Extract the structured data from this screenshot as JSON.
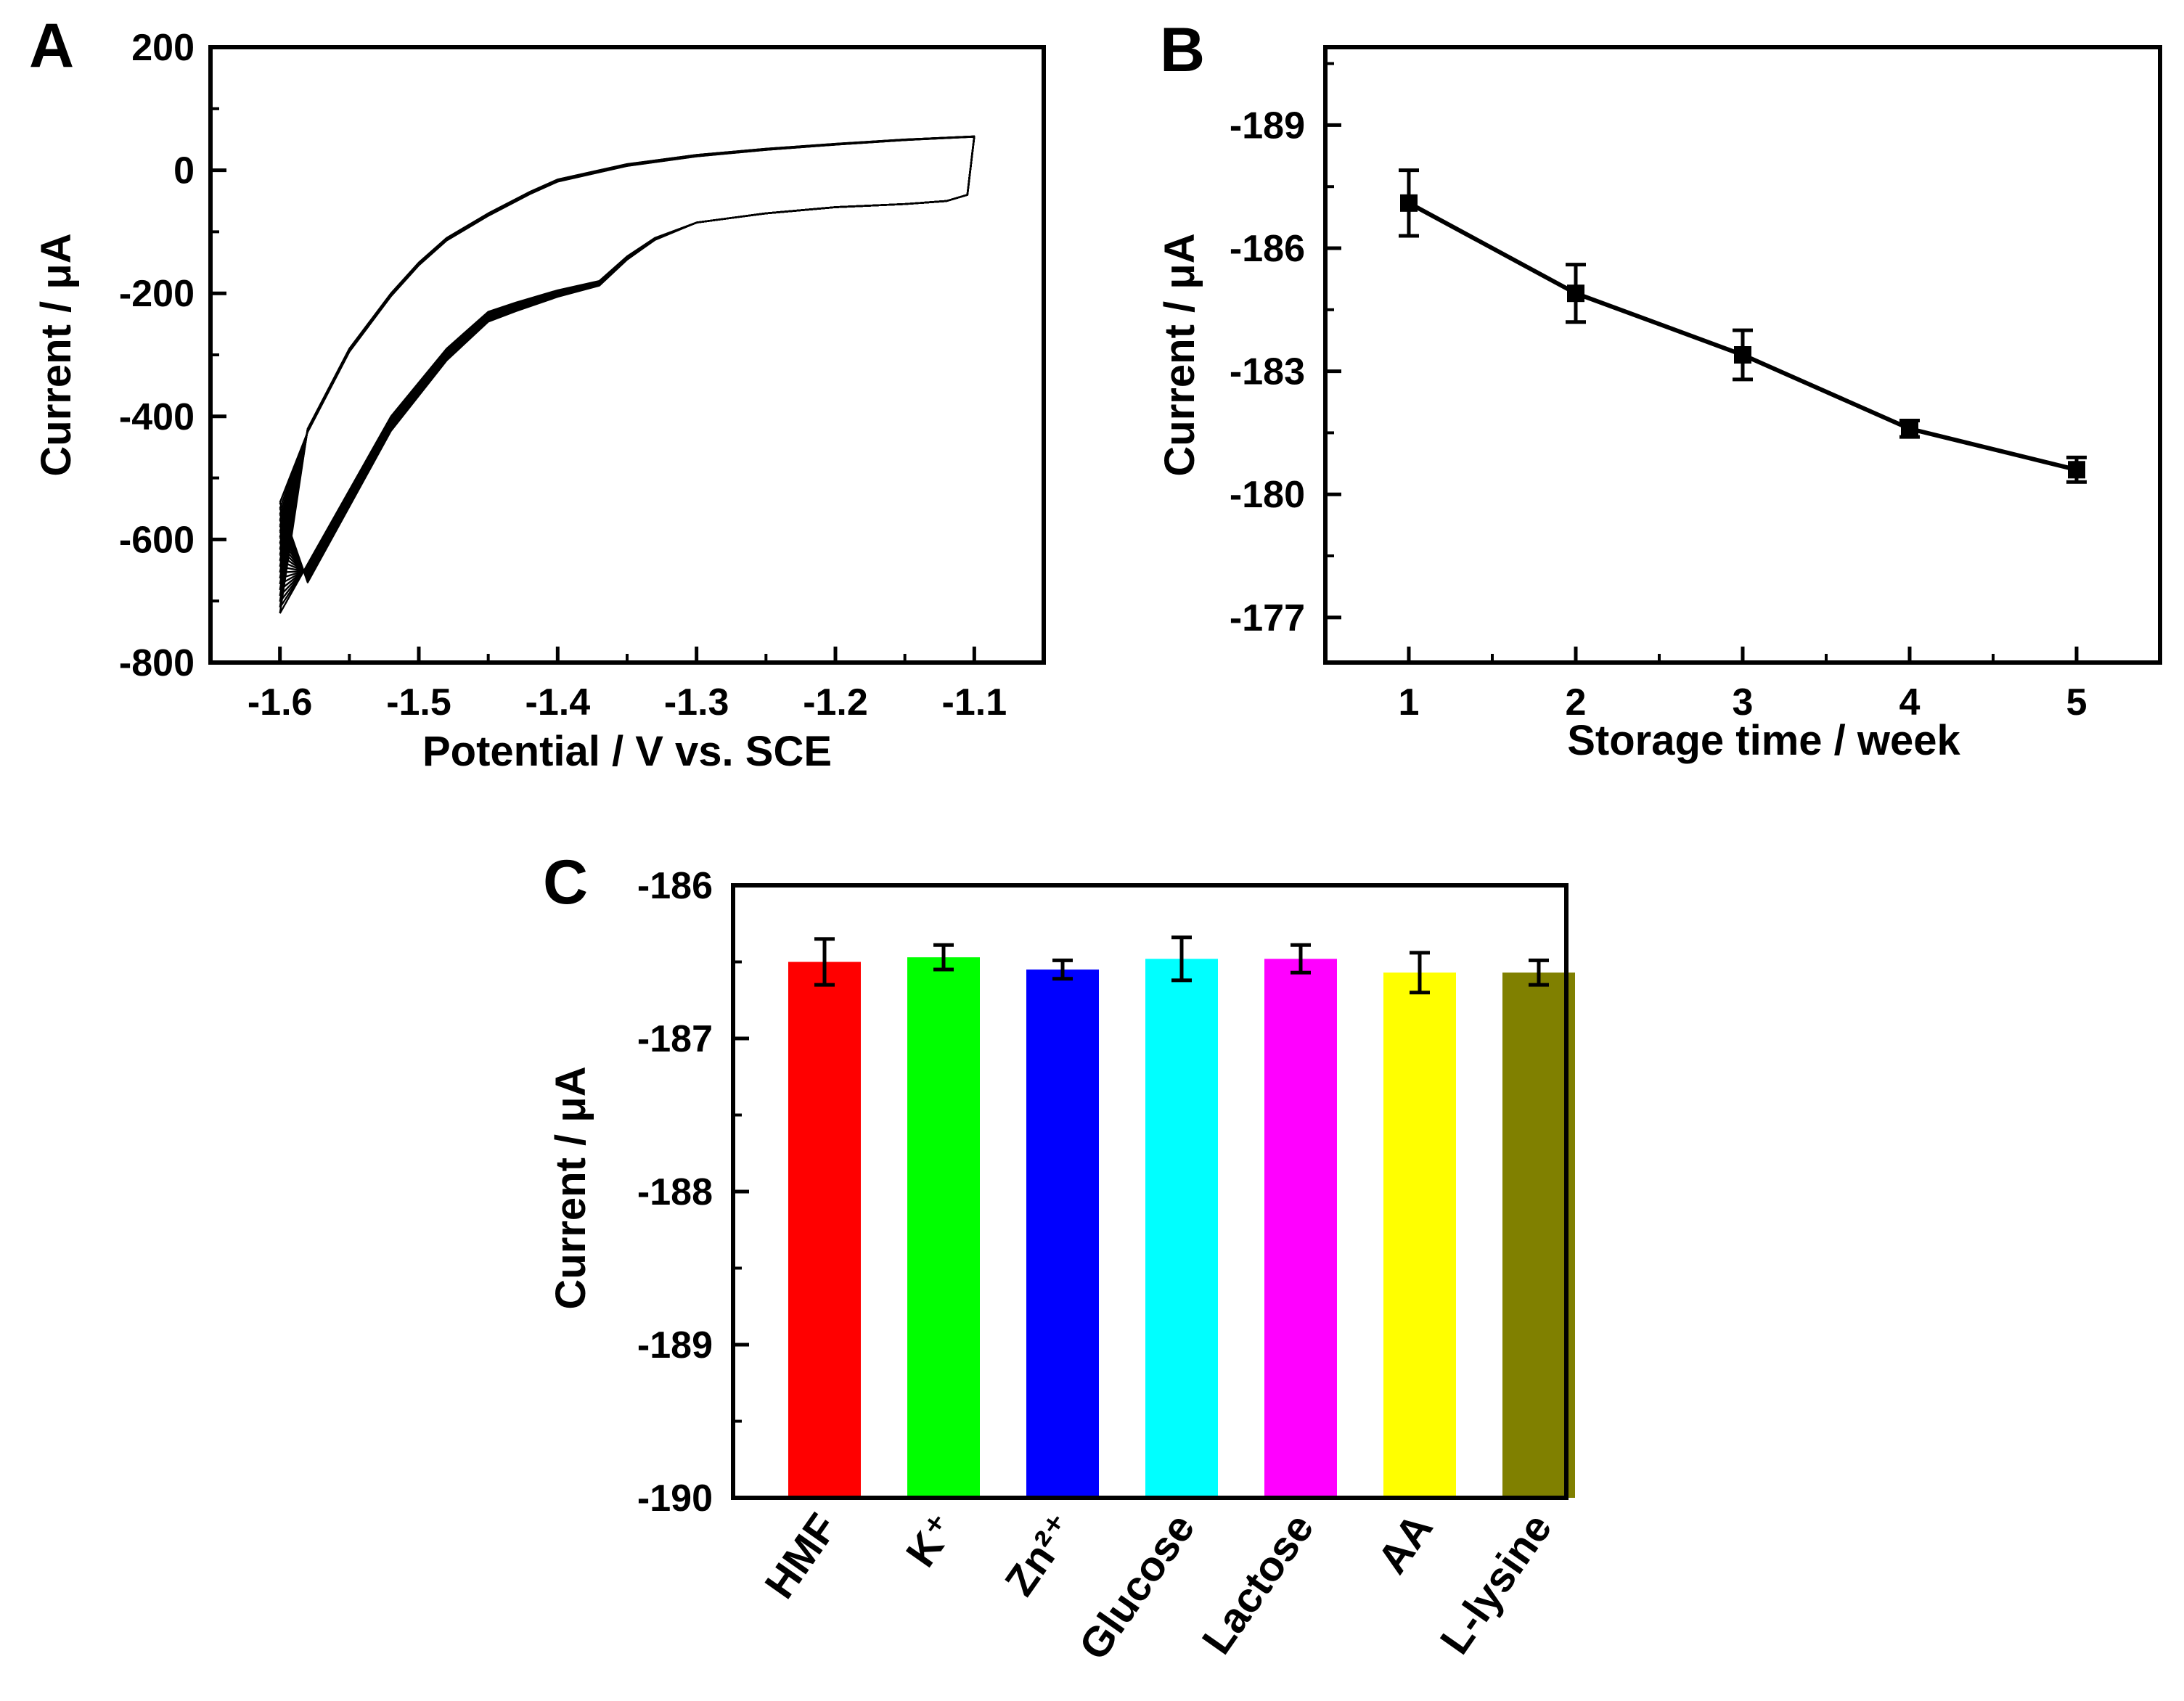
{
  "panel_labels": {
    "a": "A",
    "b": "B",
    "c": "C"
  },
  "chart_data": [
    {
      "panel": "A",
      "type": "line",
      "xlabel": "Potential / V vs. SCE",
      "ylabel": "Current / μA",
      "xlim": [
        -1.65,
        -1.05
      ],
      "ylim": [
        -800,
        200
      ],
      "x_ticks": [
        -1.6,
        -1.5,
        -1.4,
        -1.3,
        -1.2,
        -1.1
      ],
      "x_tick_labels": [
        "-1.6",
        "-1.5",
        "-1.4",
        "-1.3",
        "-1.2",
        "-1.1"
      ],
      "y_ticks": [
        -800,
        -600,
        -400,
        -200,
        0,
        200
      ],
      "y_tick_labels": [
        "-800",
        "-600",
        "-400",
        "-200",
        "0",
        "200"
      ],
      "cycles": 20,
      "anodic_branch": {
        "x": [
          -1.6,
          -1.58,
          -1.55,
          -1.52,
          -1.5,
          -1.48,
          -1.45,
          -1.42,
          -1.4,
          -1.37,
          -1.35,
          -1.3,
          -1.25,
          -1.2,
          -1.15,
          -1.1
        ],
        "y": [
          -630,
          -420,
          -290,
          -200,
          -150,
          -110,
          -70,
          -35,
          -15,
          0,
          10,
          25,
          35,
          43,
          50,
          55
        ]
      },
      "cathodic_branch": {
        "x": [
          -1.1,
          -1.105,
          -1.12,
          -1.15,
          -1.2,
          -1.25,
          -1.3,
          -1.33,
          -1.35,
          -1.37,
          -1.4,
          -1.43,
          -1.45,
          -1.48,
          -1.52,
          -1.55,
          -1.58,
          -1.6
        ],
        "y": [
          55,
          -40,
          -50,
          -55,
          -60,
          -70,
          -85,
          -110,
          -140,
          -180,
          -195,
          -215,
          -230,
          -290,
          -400,
          -520,
          -640,
          -720
        ]
      },
      "cycle_spread": {
        "anodic_dy": -6,
        "cathodic_dy": -4,
        "apex_y_range": [
          -720,
          -540
        ]
      },
      "grid": false
    },
    {
      "panel": "B",
      "type": "line",
      "xlabel": "Storage time / week",
      "ylabel": "Current / μA",
      "xlim": [
        0.5,
        5.5
      ],
      "ylim": [
        -175.9,
        -190.9
      ],
      "y_reversed": true,
      "x_ticks": [
        1,
        2,
        3,
        4,
        5
      ],
      "x_tick_labels": [
        "1",
        "2",
        "3",
        "4",
        "5"
      ],
      "y_ticks": [
        -177,
        -180,
        -183,
        -186,
        -189
      ],
      "y_tick_labels": [
        "-177",
        "-180",
        "-183",
        "-186",
        "-189"
      ],
      "x": [
        1,
        2,
        3,
        4,
        5
      ],
      "y": [
        -187.1,
        -184.9,
        -183.4,
        -181.6,
        -180.6
      ],
      "error": [
        0.8,
        0.7,
        0.6,
        0.2,
        0.3
      ],
      "marker": "square",
      "grid": false
    },
    {
      "panel": "C",
      "type": "bar",
      "xlabel": "",
      "ylabel": "Current / μA",
      "ylim": [
        -190,
        -186
      ],
      "y_ticks": [
        -190,
        -189,
        -188,
        -187,
        -186
      ],
      "y_tick_labels": [
        "-190",
        "-189",
        "-188",
        "-187",
        "-186"
      ],
      "categories": [
        "HMF",
        "K⁺",
        "Zn²⁺",
        "Glucose",
        "Lactose",
        "AA",
        "L-lysine"
      ],
      "values": [
        -186.5,
        -186.47,
        -186.55,
        -186.48,
        -186.48,
        -186.57,
        -186.57
      ],
      "error": [
        0.15,
        0.08,
        0.06,
        0.14,
        0.09,
        0.13,
        0.08
      ],
      "colors": [
        "#ff0000",
        "#00ff00",
        "#0000ff",
        "#00ffff",
        "#ff00ff",
        "#ffff00",
        "#808000"
      ],
      "grid": false
    }
  ]
}
